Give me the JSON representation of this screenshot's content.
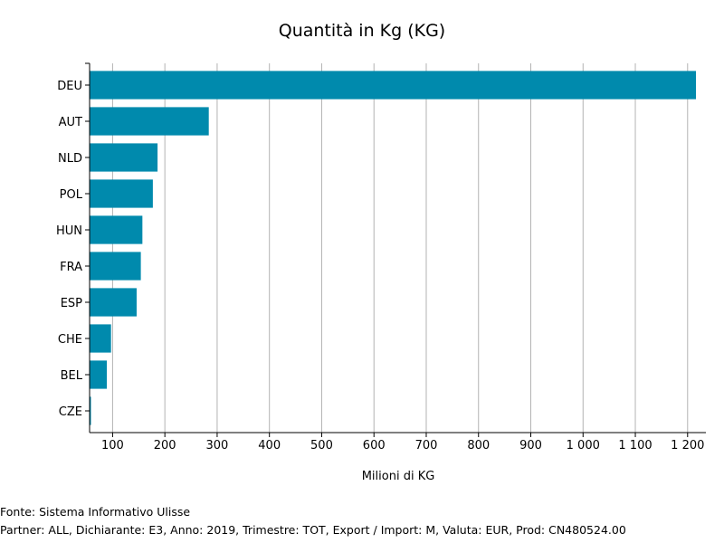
{
  "chart_data": {
    "type": "bar",
    "orientation": "horizontal",
    "title": "Quantità in Kg (KG)",
    "xlabel": "Milioni di KG",
    "ylabel": "",
    "categories": [
      "DEU",
      "AUT",
      "NLD",
      "POL",
      "HUN",
      "FRA",
      "ESP",
      "CHE",
      "BEL",
      "CZE"
    ],
    "values": [
      1216,
      284,
      186,
      177,
      157,
      154,
      146,
      97,
      89,
      56
    ],
    "xlim": [
      56,
      1235
    ],
    "xticks": [
      100,
      200,
      300,
      400,
      500,
      600,
      700,
      800,
      900,
      1000,
      1100,
      1200
    ],
    "xtick_labels": [
      "100",
      "200",
      "300",
      "400",
      "500",
      "600",
      "700",
      "800",
      "900",
      "1 000",
      "1 100",
      "1 200"
    ],
    "grid": "vertical",
    "bar_color": "#008aad"
  },
  "footer": {
    "source": "Fonte: Sistema Informativo Ulisse",
    "details": "Partner: ALL, Dichiarante: E3, Anno: 2019, Trimestre: TOT, Export / Import: M, Valuta: EUR, Prod: CN480524.00"
  }
}
